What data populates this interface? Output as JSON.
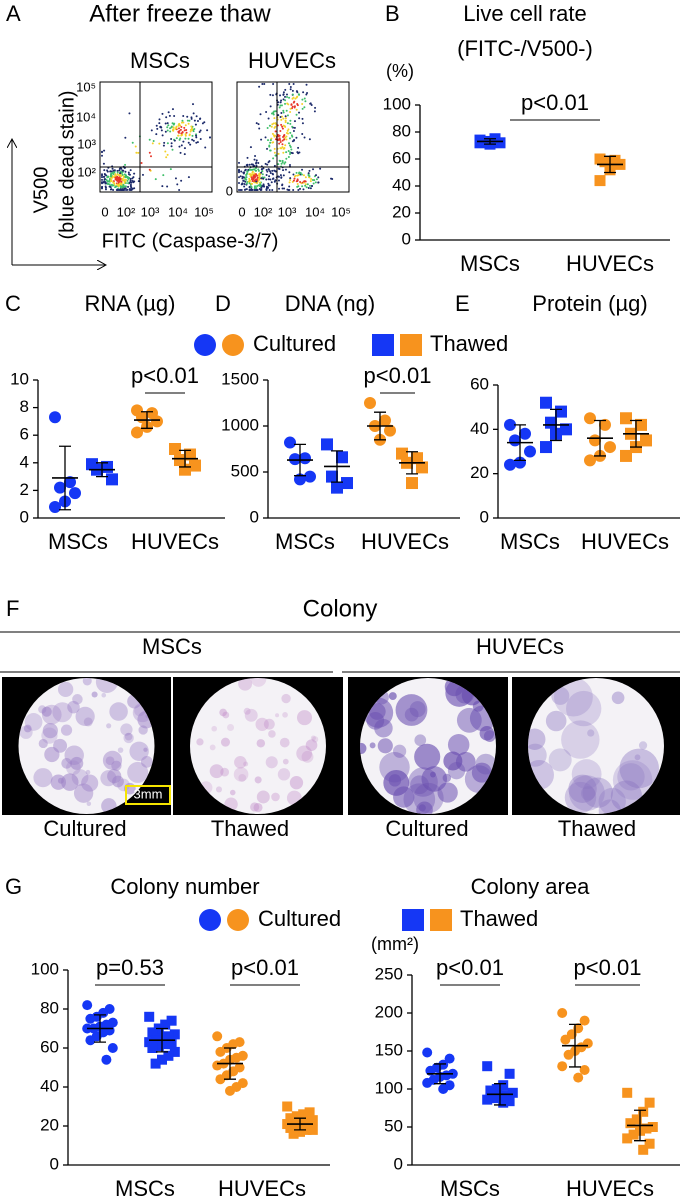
{
  "panel_a": {
    "letter": "A",
    "title": "After freeze thaw",
    "plots": [
      "MSCs",
      "HUVECs"
    ],
    "xticks": [
      "0",
      "10²",
      "10³",
      "10⁴",
      "10⁵"
    ],
    "yticks": [
      "10⁵",
      "10⁴",
      "10³",
      "10²"
    ],
    "xlabel": "FITC (Caspase-3/7)",
    "ylabel": "V500",
    "ylabel2": "(blue dead stain)"
  },
  "panel_f": {
    "letter": "F",
    "title": "Colony",
    "groups": [
      "MSCs",
      "HUVECs"
    ],
    "images": [
      "Cultured",
      "Thawed",
      "Cultured",
      "Thawed"
    ],
    "scale": "3mm"
  },
  "chart_data": [
    {
      "type": "dot",
      "panel": "B",
      "title": "Live cell rate",
      "subtitle": "(FITC-/V500-)",
      "ylabel": "(%)",
      "categories": [
        "MSCs",
        "HUVECs"
      ],
      "colors": [
        "#1537f5",
        "#f7931e"
      ],
      "ylim": [
        0,
        100
      ],
      "yticks": [
        0,
        20,
        40,
        60,
        80,
        100
      ],
      "annotations": [
        "p<0.01"
      ],
      "series": [
        {
          "marker": "square",
          "values": [
            [
              74,
              75,
              73,
              72,
              71,
              72
            ],
            [
              60,
              59,
              58,
              56,
              52,
              44
            ]
          ],
          "means": [
            73,
            56
          ],
          "errors": [
            2,
            6
          ]
        }
      ]
    },
    {
      "type": "dot",
      "panel": "C",
      "title": "RNA (µg)",
      "categories": [
        "MSCs",
        "HUVECs"
      ],
      "colors": [
        "#1537f5",
        "#f7931e"
      ],
      "ylim": [
        0,
        10
      ],
      "yticks": [
        0,
        2,
        4,
        6,
        8,
        10
      ],
      "annotations": [
        "p<0.01"
      ],
      "series": [
        {
          "name": "Cultured",
          "marker": "circle",
          "values": [
            [
              7.3,
              2.6,
              2.2,
              1.8,
              1.2,
              0.8
            ],
            [
              7.8,
              7.6,
              7.3,
              7.0,
              6.6,
              6.2
            ]
          ],
          "means": [
            2.9,
            7.1
          ],
          "errors": [
            2.3,
            0.6
          ]
        },
        {
          "name": "Thawed",
          "marker": "square",
          "values": [
            [
              3.9,
              3.7,
              3.5,
              2.8
            ],
            [
              5.0,
              4.6,
              4.2,
              3.8,
              3.5
            ]
          ],
          "means": [
            3.5,
            4.3
          ],
          "errors": [
            0.5,
            0.6
          ]
        }
      ]
    },
    {
      "type": "dot",
      "panel": "D",
      "title": "DNA (ng)",
      "categories": [
        "MSCs",
        "HUVECs"
      ],
      "colors": [
        "#1537f5",
        "#f7931e"
      ],
      "ylim": [
        0,
        1500
      ],
      "yticks": [
        0,
        500,
        1000,
        1500
      ],
      "annotations": [
        "p<0.01"
      ],
      "series": [
        {
          "name": "Cultured",
          "marker": "circle",
          "values": [
            [
              820,
              650,
              640,
              450,
              420
            ],
            [
              1250,
              1060,
              1000,
              950,
              850
            ]
          ],
          "means": [
            630,
            1000
          ],
          "errors": [
            170,
            150
          ]
        },
        {
          "name": "Thawed",
          "marker": "square",
          "values": [
            [
              800,
              660,
              450,
              380,
              330
            ],
            [
              700,
              650,
              600,
              550,
              380
            ]
          ],
          "means": [
            560,
            600
          ],
          "errors": [
            170,
            120
          ]
        }
      ]
    },
    {
      "type": "dot",
      "panel": "E",
      "title": "Protein (µg)",
      "categories": [
        "MSCs",
        "HUVECs"
      ],
      "colors": [
        "#1537f5",
        "#f7931e"
      ],
      "ylim": [
        0,
        60
      ],
      "yticks": [
        0,
        20,
        40,
        60
      ],
      "series": [
        {
          "name": "Cultured",
          "marker": "circle",
          "values": [
            [
              42,
              38,
              35,
              30,
              25,
              24
            ],
            [
              45,
              42,
              35,
              32,
              28,
              26
            ]
          ],
          "means": [
            34,
            36
          ],
          "errors": [
            8,
            8
          ]
        },
        {
          "name": "Thawed",
          "marker": "square",
          "values": [
            [
              52,
              48,
              43,
              40,
              38,
              32
            ],
            [
              45,
              42,
              38,
              35,
              32,
              28
            ]
          ],
          "means": [
            42,
            38
          ],
          "errors": [
            7,
            6
          ]
        }
      ]
    },
    {
      "type": "dot",
      "panel": "G",
      "title": "Colony number",
      "categories": [
        "MSCs",
        "HUVECs"
      ],
      "colors": [
        "#1537f5",
        "#f7931e"
      ],
      "ylim": [
        0,
        100
      ],
      "yticks": [
        0,
        20,
        40,
        60,
        80,
        100
      ],
      "annotations": [
        "p=0.53",
        "p<0.01"
      ],
      "series": [
        {
          "name": "Cultured",
          "marker": "circle",
          "values": [
            [
              82,
              80,
              78,
              76,
              75,
              73,
              72,
              71,
              70,
              70,
              69,
              68,
              66,
              64,
              60,
              54
            ],
            [
              66,
              63,
              62,
              60,
              58,
              56,
              55,
              54,
              52,
              51,
              50,
              48,
              46,
              44,
              42,
              40,
              38
            ]
          ],
          "means": [
            70,
            52
          ],
          "errors": [
            7,
            8
          ]
        },
        {
          "name": "Thawed",
          "marker": "square",
          "values": [
            [
              76,
              74,
              72,
              70,
              68,
              67,
              66,
              65,
              64,
              63,
              62,
              62,
              61,
              60,
              58,
              56,
              54,
              52
            ],
            [
              30,
              27,
              26,
              25,
              24,
              23,
              22,
              22,
              21,
              21,
              20,
              20,
              19,
              19,
              18,
              18,
              17,
              16
            ]
          ],
          "means": [
            64,
            21
          ],
          "errors": [
            6,
            3
          ]
        }
      ]
    },
    {
      "type": "dot",
      "title": "Colony area",
      "ylabel": "(mm²)",
      "categories": [
        "MSCs",
        "HUVECs"
      ],
      "colors": [
        "#1537f5",
        "#f7931e"
      ],
      "ylim": [
        0,
        250
      ],
      "yticks": [
        0,
        50,
        100,
        150,
        200,
        250
      ],
      "annotations": [
        "p<0.01",
        "p<0.01"
      ],
      "series": [
        {
          "name": "Cultured",
          "marker": "circle",
          "values": [
            [
              148,
              140,
              132,
              128,
              124,
              120,
              118,
              116,
              112,
              108,
              105,
              100
            ],
            [
              200,
              190,
              180,
              172,
              165,
              160,
              155,
              150,
              145,
              130,
              125,
              115
            ]
          ],
          "means": [
            120,
            157
          ],
          "errors": [
            13,
            28
          ]
        },
        {
          "name": "Thawed",
          "marker": "square",
          "values": [
            [
              130,
              120,
              105,
              100,
              98,
              95,
              92,
              90,
              88,
              86,
              84,
              82
            ],
            [
              95,
              82,
              70,
              60,
              55,
              50,
              48,
              45,
              40,
              35,
              28,
              20
            ]
          ],
          "means": [
            93,
            52
          ],
          "errors": [
            14,
            20
          ]
        }
      ]
    }
  ]
}
